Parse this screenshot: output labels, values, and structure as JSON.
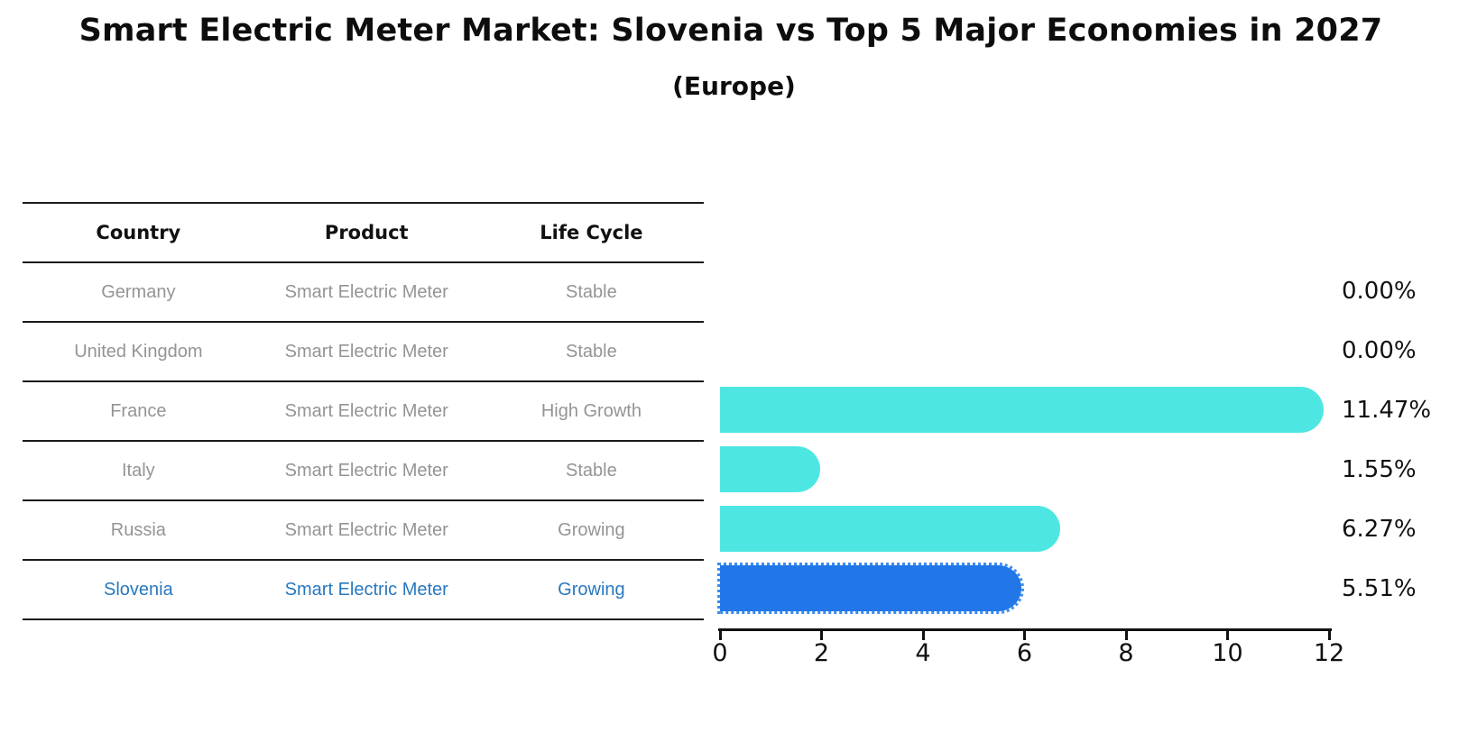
{
  "title": "Smart Electric Meter Market: Slovenia vs Top 5 Major Economies in 2027",
  "subtitle": "(Europe)",
  "table": {
    "headers": [
      "Country",
      "Product",
      "Life Cycle"
    ],
    "rows": [
      {
        "country": "Germany",
        "product": "Smart Electric Meter",
        "life_cycle": "Stable",
        "highlight": false
      },
      {
        "country": "United Kingdom",
        "product": "Smart Electric Meter",
        "life_cycle": "Stable",
        "highlight": false
      },
      {
        "country": "France",
        "product": "Smart Electric Meter",
        "life_cycle": "High Growth",
        "highlight": false
      },
      {
        "country": "Italy",
        "product": "Smart Electric Meter",
        "life_cycle": "Stable",
        "highlight": false
      },
      {
        "country": "Russia",
        "product": "Smart Electric Meter",
        "life_cycle": "Growing",
        "highlight": false
      },
      {
        "country": "Slovenia",
        "product": "Smart Electric Meter",
        "life_cycle": "Growing",
        "highlight": true
      }
    ]
  },
  "chart_data": {
    "type": "bar",
    "orientation": "horizontal",
    "title": "Smart Electric Meter Market: Slovenia vs Top 5 Major Economies in 2027 (Europe)",
    "categories": [
      "Germany",
      "United Kingdom",
      "France",
      "Italy",
      "Russia",
      "Slovenia"
    ],
    "values": [
      0.0,
      0.0,
      11.47,
      1.55,
      6.27,
      5.51
    ],
    "value_labels": [
      "0.00%",
      "0.00%",
      "11.47%",
      "1.55%",
      "6.27%",
      "5.51%"
    ],
    "xlim": [
      0,
      12
    ],
    "x_ticks": [
      0,
      2,
      4,
      6,
      8,
      10,
      12
    ],
    "grid": false,
    "legend": "none",
    "highlight_category": "Slovenia",
    "colors": {
      "bar_default": "#4de6e2",
      "bar_highlight": "#2176e8",
      "highlight_text": "#2878be",
      "table_text": "#949494",
      "label_text": "#111111"
    }
  }
}
